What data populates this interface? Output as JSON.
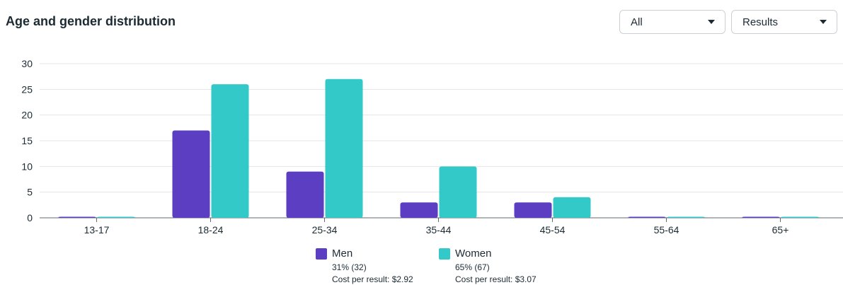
{
  "header": {
    "title": "Age and gender distribution",
    "filter_value": "All",
    "metric_value": "Results"
  },
  "colors": {
    "men": "#5b3ec1",
    "women": "#33c9c8",
    "grid": "#e3e5e8",
    "axis": "#5f6a72"
  },
  "legend": {
    "men": {
      "label": "Men",
      "share": "31% (32)",
      "cost": "Cost per result: $2.92"
    },
    "women": {
      "label": "Women",
      "share": "65% (67)",
      "cost": "Cost per result: $3.07"
    }
  },
  "chart_data": {
    "type": "bar",
    "title": "Age and gender distribution",
    "categories": [
      "13-17",
      "18-24",
      "25-34",
      "35-44",
      "45-54",
      "55-64",
      "65+"
    ],
    "series": [
      {
        "name": "Men",
        "values": [
          0,
          17,
          9,
          3,
          3,
          0,
          0
        ]
      },
      {
        "name": "Women",
        "values": [
          0,
          26,
          27,
          10,
          4,
          0,
          0
        ]
      }
    ],
    "yticks": [
      0,
      5,
      10,
      15,
      20,
      25,
      30
    ],
    "ylim": [
      0,
      30
    ],
    "xlabel": "",
    "ylabel": "",
    "grid": true,
    "legend_position": "bottom"
  }
}
